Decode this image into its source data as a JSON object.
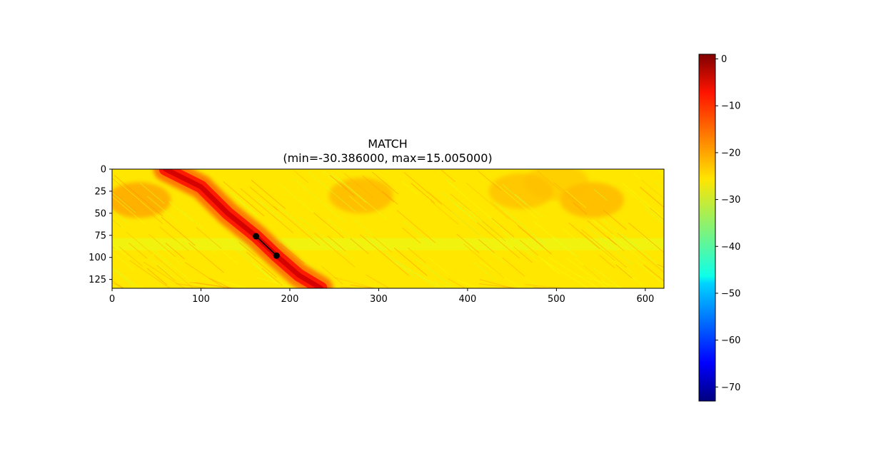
{
  "chart_data": {
    "type": "heatmap",
    "title": "MATCH",
    "subtitle": "(min=-30.386000, max=15.005000)",
    "xlabel": "",
    "ylabel": "",
    "xlim": [
      0,
      621
    ],
    "ylim": [
      135,
      0
    ],
    "x_ticks": [
      0,
      100,
      200,
      300,
      400,
      500,
      600
    ],
    "y_ticks": [
      0,
      25,
      50,
      75,
      100,
      125
    ],
    "x_tick_labels": [
      "0",
      "100",
      "200",
      "300",
      "400",
      "500",
      "600"
    ],
    "y_tick_labels": [
      "0",
      "25",
      "50",
      "75",
      "100",
      "125"
    ],
    "colormap": "jet",
    "colorbar": {
      "vmin": -73,
      "vmax": 1,
      "ticks": [
        0,
        -10,
        -20,
        -30,
        -40,
        -50,
        -60,
        -70
      ],
      "tick_labels": [
        "0",
        "−10",
        "−20",
        "−30",
        "−40",
        "−50",
        "−60",
        "−70"
      ]
    },
    "background_value": -25,
    "ridge": {
      "description_points": [
        [
          60,
          0
        ],
        [
          100,
          20
        ],
        [
          130,
          50
        ],
        [
          162,
          76
        ],
        [
          185,
          98
        ],
        [
          210,
          120
        ],
        [
          235,
          135
        ]
      ],
      "peak_value": -5
    },
    "path": {
      "points": [
        [
          162,
          76
        ],
        [
          185,
          98
        ]
      ],
      "marker_color": "#000000"
    },
    "grid": false,
    "legend": "none"
  }
}
